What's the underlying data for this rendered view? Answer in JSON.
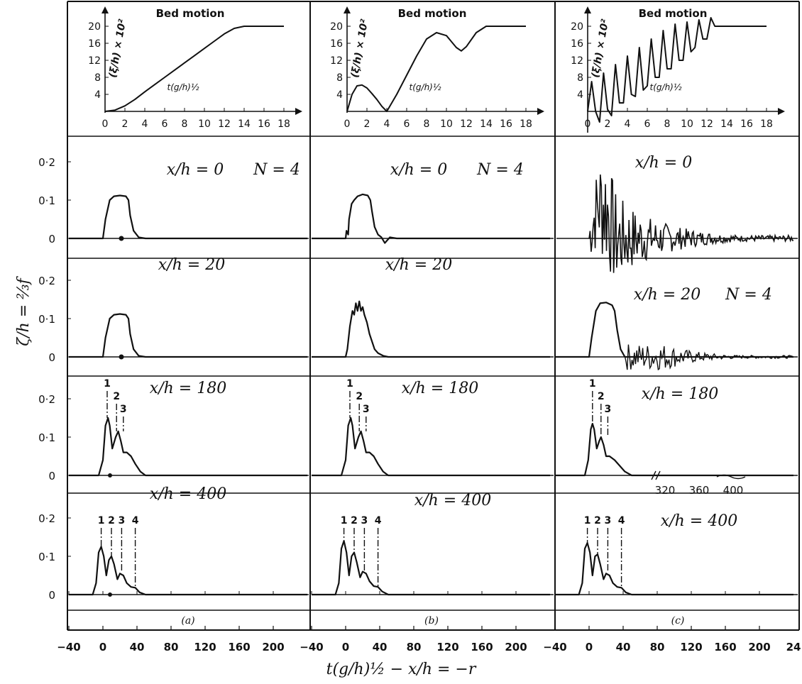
{
  "figure": {
    "y_label": "ζ/h = ⅔f",
    "x_label": "t(g/h)½ − x/h = −r",
    "panel_letters": [
      "(a)",
      "(b)",
      "(c)"
    ]
  },
  "chart_data": {
    "type": "line",
    "bed_motion": [
      {
        "column": "a",
        "title": "Bed motion",
        "ylabel": "(ξ/h) × 10²",
        "xlabel": "t(g/h)½",
        "xticks": [
          0,
          2,
          4,
          6,
          8,
          10,
          12,
          14,
          16,
          18
        ],
        "yticks": [
          4,
          8,
          12,
          16,
          20
        ],
        "xlim": [
          0,
          20
        ],
        "ylim": [
          0,
          23
        ],
        "x": [
          0,
          1,
          2,
          3,
          4,
          5,
          6,
          7,
          8,
          9,
          10,
          11,
          12,
          13,
          14,
          15,
          16,
          17,
          18
        ],
        "y": [
          0,
          0.3,
          1.3,
          2.8,
          4.6,
          6.3,
          8.0,
          9.7,
          11.4,
          13.1,
          14.8,
          16.5,
          18.2,
          19.5,
          20,
          20,
          20,
          20,
          20
        ]
      },
      {
        "column": "b",
        "title": "Bed motion",
        "ylabel": "(ξ/h) × 10²",
        "xlabel": "t(g/h)½",
        "xticks": [
          0,
          2,
          4,
          6,
          8,
          10,
          12,
          14,
          16,
          18
        ],
        "yticks": [
          4,
          8,
          12,
          16,
          20
        ],
        "xlim": [
          0,
          20
        ],
        "ylim": [
          0,
          23
        ],
        "x": [
          0,
          0.5,
          1,
          1.5,
          2,
          2.5,
          3,
          3.5,
          4,
          5,
          6,
          7,
          8,
          9,
          10,
          11,
          11.5,
          12,
          13,
          14,
          16,
          18
        ],
        "y": [
          0,
          4,
          6,
          6.2,
          5.5,
          4.2,
          2.8,
          1.2,
          0,
          4,
          8.5,
          13,
          17,
          18.5,
          17.8,
          15,
          14.2,
          15.2,
          18.5,
          20,
          20,
          20
        ]
      },
      {
        "column": "c",
        "title": "Bed motion",
        "ylabel": "(ξ/h) × 10²",
        "xlabel": "t(g/h)½",
        "xticks": [
          0,
          2,
          4,
          6,
          8,
          10,
          12,
          14,
          16,
          18
        ],
        "yticks": [
          4,
          8,
          12,
          16,
          20
        ],
        "xlim": [
          0,
          20
        ],
        "ylim": [
          -3,
          23
        ],
        "x": [
          0,
          0.4,
          0.8,
          1.2,
          1.6,
          2.0,
          2.4,
          2.8,
          3.2,
          3.6,
          4.0,
          4.4,
          4.8,
          5.2,
          5.6,
          6.0,
          6.4,
          6.8,
          7.2,
          7.6,
          8.0,
          8.4,
          8.8,
          9.2,
          9.6,
          10.0,
          10.4,
          10.8,
          11.2,
          11.6,
          12.0,
          12.4,
          12.8,
          13.2,
          14,
          16,
          18
        ],
        "y": [
          0,
          7,
          0,
          -2.5,
          9,
          0.5,
          -1,
          11,
          2,
          2,
          13,
          4,
          3.5,
          15,
          5,
          6,
          17,
          8,
          8,
          19,
          10,
          10,
          20.5,
          12,
          12,
          21,
          14,
          15,
          21.5,
          17,
          17,
          22,
          20,
          20,
          20,
          20,
          20
        ]
      }
    ],
    "wave_panels": {
      "yticks": [
        0,
        0.1,
        0.2
      ],
      "ytick_labels": [
        "0",
        "0·1",
        "0·2"
      ],
      "ylim": [
        -0.04,
        0.3
      ],
      "xlim": [
        -40,
        240
      ],
      "xticks": [
        -40,
        0,
        40,
        80,
        120,
        160,
        200
      ],
      "xtick_labels_last_column": [
        "−40",
        "0",
        "40",
        "80",
        "120",
        "160",
        "200",
        "24"
      ],
      "inset_xtick_labels": [
        "320",
        "360",
        "400"
      ],
      "rows": [
        {
          "label": "x/h = 0",
          "N_label": [
            "N = 4",
            "N = 4",
            ""
          ]
        },
        {
          "label": "x/h = 20",
          "N_label": [
            "",
            "",
            "N = 4"
          ]
        },
        {
          "label": "x/h = 180",
          "peaks": [
            "1",
            "2",
            "3"
          ]
        },
        {
          "label": "x/h = 400",
          "peaks": [
            "1",
            "2",
            "3",
            "4"
          ]
        }
      ],
      "series": [
        {
          "row": 0,
          "col": 0,
          "x": [
            -40,
            0,
            3,
            8,
            13,
            20,
            27,
            30,
            32,
            36,
            42,
            50,
            60,
            240
          ],
          "y": [
            0,
            0,
            0.05,
            0.1,
            0.11,
            0.112,
            0.11,
            0.1,
            0.06,
            0.02,
            0.003,
            0,
            0,
            0
          ]
        },
        {
          "row": 0,
          "col": 1,
          "x": [
            -40,
            0,
            1,
            3,
            4,
            7,
            10,
            14,
            20,
            26,
            29,
            31,
            34,
            38,
            42,
            46,
            52,
            60,
            80,
            120,
            240
          ],
          "y": [
            0,
            0,
            0.02,
            0.01,
            0.05,
            0.09,
            0.1,
            0.11,
            0.115,
            0.112,
            0.1,
            0.07,
            0.03,
            0.01,
            0.003,
            -0.012,
            0.003,
            0,
            0,
            0,
            0
          ]
        },
        {
          "row": 1,
          "col": 0,
          "x": [
            -40,
            0,
            3,
            8,
            13,
            20,
            27,
            30,
            32,
            36,
            42,
            50,
            60,
            240
          ],
          "y": [
            0,
            0,
            0.05,
            0.1,
            0.11,
            0.112,
            0.11,
            0.1,
            0.06,
            0.02,
            0.003,
            0,
            0,
            0
          ]
        },
        {
          "row": 1,
          "col": 1,
          "x": [
            -40,
            0,
            2,
            5,
            8,
            10,
            12,
            14,
            16,
            18,
            20,
            22,
            25,
            28,
            31,
            34,
            38,
            44,
            50,
            60,
            240
          ],
          "y": [
            0,
            0,
            0.02,
            0.08,
            0.12,
            0.11,
            0.14,
            0.12,
            0.145,
            0.12,
            0.13,
            0.11,
            0.09,
            0.06,
            0.04,
            0.02,
            0.01,
            0.003,
            0,
            0,
            0
          ]
        },
        {
          "row": 1,
          "col": 2,
          "x": [
            -40,
            0,
            3,
            8,
            13,
            20,
            27,
            30,
            33,
            37,
            42,
            50,
            240
          ],
          "y": [
            0,
            0,
            0.05,
            0.12,
            0.14,
            0.142,
            0.135,
            0.12,
            0.07,
            0.02,
            0,
            0,
            0
          ]
        },
        {
          "row": 2,
          "col": 0,
          "x": [
            -40,
            -5,
            0,
            3,
            6,
            8,
            11,
            15,
            18,
            21,
            24,
            28,
            33,
            38,
            44,
            50,
            240
          ],
          "y": [
            0,
            0,
            0.04,
            0.13,
            0.15,
            0.13,
            0.07,
            0.1,
            0.115,
            0.09,
            0.06,
            0.06,
            0.05,
            0.03,
            0.01,
            0,
            0
          ]
        },
        {
          "row": 2,
          "col": 1,
          "x": [
            -40,
            -5,
            0,
            3,
            6,
            8,
            11,
            15,
            18,
            21,
            24,
            28,
            33,
            38,
            44,
            50,
            240
          ],
          "y": [
            0,
            0,
            0.04,
            0.13,
            0.15,
            0.13,
            0.07,
            0.1,
            0.115,
            0.09,
            0.06,
            0.06,
            0.05,
            0.03,
            0.01,
            0,
            0
          ]
        },
        {
          "row": 2,
          "col": 2,
          "x": [
            -40,
            -5,
            -1,
            2,
            4,
            6,
            9,
            12,
            14,
            17,
            20,
            24,
            30,
            36,
            42,
            50,
            240
          ],
          "y": [
            0,
            0,
            0.04,
            0.12,
            0.135,
            0.12,
            0.07,
            0.09,
            0.1,
            0.08,
            0.05,
            0.05,
            0.04,
            0.025,
            0.01,
            0,
            0
          ]
        },
        {
          "row": 3,
          "col": 0,
          "x": [
            -40,
            -12,
            -8,
            -5,
            -2,
            1,
            4,
            7,
            10,
            13,
            17,
            20,
            24,
            28,
            33,
            38,
            43,
            50,
            240
          ],
          "y": [
            0,
            0,
            0.03,
            0.11,
            0.125,
            0.1,
            0.05,
            0.09,
            0.1,
            0.08,
            0.04,
            0.055,
            0.05,
            0.03,
            0.02,
            0.018,
            0.006,
            0,
            0
          ]
        },
        {
          "row": 3,
          "col": 1,
          "x": [
            -40,
            -12,
            -8,
            -5,
            -2,
            1,
            4,
            7,
            10,
            13,
            17,
            20,
            24,
            28,
            33,
            38,
            43,
            50,
            240
          ],
          "y": [
            0,
            0,
            0.03,
            0.12,
            0.14,
            0.11,
            0.05,
            0.1,
            0.11,
            0.085,
            0.045,
            0.06,
            0.055,
            0.035,
            0.022,
            0.02,
            0.008,
            0,
            0
          ]
        },
        {
          "row": 3,
          "col": 2,
          "x": [
            -40,
            -12,
            -8,
            -5,
            -2,
            1,
            4,
            7,
            10,
            13,
            17,
            20,
            24,
            28,
            33,
            38,
            43,
            50,
            240
          ],
          "y": [
            0,
            0,
            0.03,
            0.12,
            0.135,
            0.11,
            0.05,
            0.1,
            0.105,
            0.08,
            0.04,
            0.055,
            0.05,
            0.03,
            0.02,
            0.018,
            0.006,
            0,
            0
          ]
        }
      ],
      "peak_markers": [
        {
          "row": 2,
          "col": 0,
          "x": [
            5,
            16,
            24
          ],
          "y": [
            0.15,
            0.115,
            0.115
          ]
        },
        {
          "row": 2,
          "col": 1,
          "x": [
            5,
            16,
            24
          ],
          "y": [
            0.15,
            0.115,
            0.115
          ]
        },
        {
          "row": 2,
          "col": 2,
          "x": [
            4,
            14,
            22
          ],
          "y": [
            0.135,
            0.1,
            0.1
          ]
        },
        {
          "row": 3,
          "col": 0,
          "x": [
            -2,
            10,
            22,
            38
          ],
          "y": [
            0.125,
            0.1,
            0.06,
            0.02
          ]
        },
        {
          "row": 3,
          "col": 1,
          "x": [
            -2,
            10,
            22,
            38
          ],
          "y": [
            0.14,
            0.11,
            0.06,
            0.02
          ]
        },
        {
          "row": 3,
          "col": 2,
          "x": [
            -2,
            10,
            22,
            38
          ],
          "y": [
            0.135,
            0.105,
            0.06,
            0.02
          ]
        }
      ]
    }
  }
}
